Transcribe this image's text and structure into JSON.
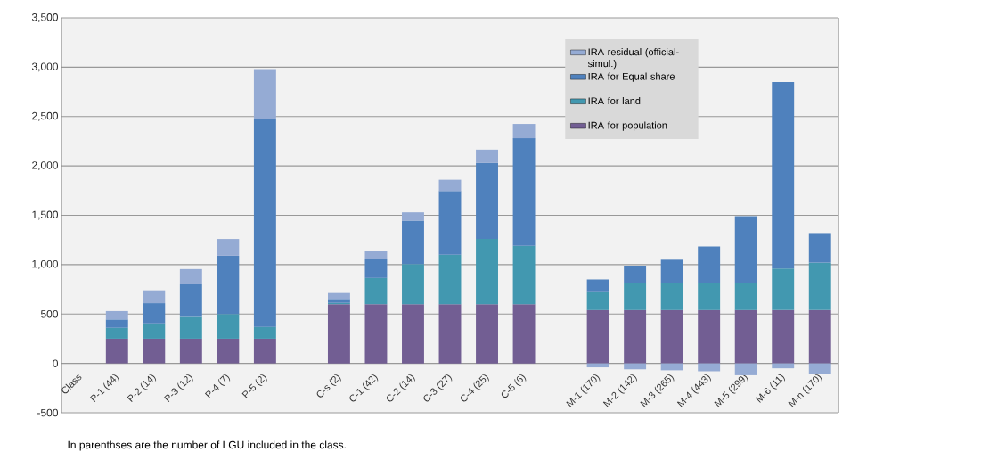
{
  "chart_data": {
    "type": "bar",
    "stacked": true,
    "categories": [
      "Class",
      "P-1 (44)",
      "P-2 (14)",
      "P-3 (12)",
      "P-4 (7)",
      "P-5 (2)",
      null,
      "C-s (2)",
      "C-1 (42)",
      "C-2 (14)",
      "C-3 (27)",
      "C-4 (25)",
      "C-5 (6)",
      null,
      "M-1 (170)",
      "M-2 (142)",
      "M-3 (265)",
      "M-4 (443)",
      "M-5 (299)",
      "M-6 (11)",
      "M-n (170)"
    ],
    "series": [
      {
        "name": "IRA for population",
        "color": "#725e93",
        "values": [
          null,
          250,
          250,
          250,
          250,
          250,
          null,
          600,
          600,
          600,
          600,
          600,
          600,
          null,
          540,
          540,
          540,
          540,
          540,
          540,
          540
        ]
      },
      {
        "name": "IRA for land",
        "color": "#4298b0",
        "values": [
          null,
          110,
          155,
          220,
          250,
          120,
          null,
          13,
          265,
          405,
          500,
          660,
          590,
          null,
          190,
          270,
          270,
          270,
          270,
          420,
          480
        ]
      },
      {
        "name": "IRA for Equal share",
        "color": "#4f81bd",
        "values": [
          null,
          85,
          205,
          330,
          590,
          2110,
          null,
          40,
          190,
          440,
          645,
          770,
          1090,
          null,
          120,
          180,
          240,
          375,
          680,
          1890,
          300
        ]
      },
      {
        "name": "IRA residual (official-simul.)",
        "color": "#95abd4",
        "values": [
          null,
          85,
          130,
          155,
          170,
          500,
          null,
          60,
          85,
          85,
          115,
          135,
          145,
          null,
          -40,
          -60,
          -70,
          -80,
          -120,
          -50,
          -110
        ]
      }
    ],
    "ylim": [
      -500,
      3500
    ],
    "yticks": [
      -500,
      0,
      500,
      {
        "value": 1000,
        "label": "1,000"
      },
      {
        "value": 1500,
        "label": "1,500"
      },
      {
        "value": 2000,
        "label": "2,000"
      },
      {
        "value": 2500,
        "label": "2,500"
      },
      {
        "value": 3000,
        "label": "3,000"
      },
      {
        "value": 3500,
        "label": "3,500"
      }
    ],
    "grid": "y",
    "legend": "top right",
    "annotations": [
      "In parenthses are the number of LGU included in the class."
    ]
  }
}
